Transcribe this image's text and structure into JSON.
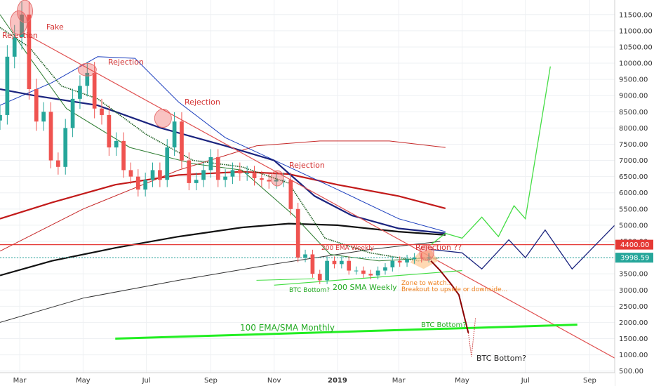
{
  "chart_data": {
    "type": "candlestick",
    "y_axis": {
      "ticks": [
        500,
        1000,
        1500,
        2000,
        2500,
        3000,
        3500,
        4000,
        4500,
        5000,
        5500,
        6000,
        6500,
        7000,
        7500,
        8000,
        8500,
        9000,
        9500,
        10000,
        10500,
        11000,
        11500
      ],
      "tick_labels": [
        "500.00",
        "1000.00",
        "1500.00",
        "2000.00",
        "2500.00",
        "3000.00",
        "3500.00",
        "4000.00",
        "4500.00",
        "5000.00",
        "5500.00",
        "6000.00",
        "6500.00",
        "7000.00",
        "7500.00",
        "8000.00",
        "8500.00",
        "9000.00",
        "9500.00",
        "10000.00",
        "10500.00",
        "11000.00",
        "11500.00"
      ],
      "ylim": [
        450,
        11950
      ],
      "scale": "linear"
    },
    "x_axis": {
      "tick_labels": [
        "Mar",
        "May",
        "Jul",
        "Sep",
        "Nov",
        "2019",
        "Mar",
        "May",
        "Jul",
        "Sep"
      ],
      "tick_dates": [
        "2018-03-01",
        "2018-05-01",
        "2018-07-01",
        "2018-09-01",
        "2018-11-01",
        "2019-01-01",
        "2019-03-01",
        "2019-05-01",
        "2019-07-01",
        "2019-09-01"
      ],
      "xlim": [
        "2018-02-10",
        "2019-09-25"
      ]
    },
    "price_labels": [
      {
        "value": 4400,
        "label": "4400.00",
        "color": "#e53935"
      },
      {
        "value": 3998.59,
        "label": "3998.59",
        "color": "#26a69a"
      }
    ],
    "candles_close": [
      [
        "2018-02-10",
        8400
      ],
      [
        "2018-02-17",
        10200
      ],
      [
        "2018-02-24",
        10800
      ],
      [
        "2018-03-03",
        11500
      ],
      [
        "2018-03-10",
        9200
      ],
      [
        "2018-03-17",
        8200
      ],
      [
        "2018-03-24",
        8500
      ],
      [
        "2018-03-31",
        7000
      ],
      [
        "2018-04-07",
        6800
      ],
      [
        "2018-04-14",
        8000
      ],
      [
        "2018-04-21",
        8900
      ],
      [
        "2018-04-28",
        9300
      ],
      [
        "2018-05-05",
        9700
      ],
      [
        "2018-05-12",
        8600
      ],
      [
        "2018-05-19",
        8400
      ],
      [
        "2018-05-26",
        7400
      ],
      [
        "2018-06-02",
        7600
      ],
      [
        "2018-06-09",
        6700
      ],
      [
        "2018-06-16",
        6500
      ],
      [
        "2018-06-23",
        6100
      ],
      [
        "2018-06-30",
        6400
      ],
      [
        "2018-07-07",
        6700
      ],
      [
        "2018-07-14",
        6400
      ],
      [
        "2018-07-21",
        7400
      ],
      [
        "2018-07-28",
        8200
      ],
      [
        "2018-08-04",
        7000
      ],
      [
        "2018-08-11",
        6300
      ],
      [
        "2018-08-18",
        6400
      ],
      [
        "2018-08-25",
        6700
      ],
      [
        "2018-09-01",
        7100
      ],
      [
        "2018-09-08",
        6400
      ],
      [
        "2018-09-15",
        6500
      ],
      [
        "2018-09-22",
        6700
      ],
      [
        "2018-09-29",
        6600
      ],
      [
        "2018-10-06",
        6600
      ],
      [
        "2018-10-13",
        6450
      ],
      [
        "2018-10-20",
        6400
      ],
      [
        "2018-10-27",
        6350
      ],
      [
        "2018-11-03",
        6400
      ],
      [
        "2018-11-10",
        6400
      ],
      [
        "2018-11-17",
        5500
      ],
      [
        "2018-11-24",
        4000
      ],
      [
        "2018-12-01",
        4100
      ],
      [
        "2018-12-08",
        3500
      ],
      [
        "2018-12-15",
        3300
      ],
      [
        "2018-12-22",
        3900
      ],
      [
        "2018-12-29",
        3800
      ],
      [
        "2019-01-05",
        3900
      ],
      [
        "2019-01-12",
        3600
      ],
      [
        "2019-01-19",
        3600
      ],
      [
        "2019-01-26",
        3500
      ],
      [
        "2019-02-02",
        3450
      ],
      [
        "2019-02-09",
        3600
      ],
      [
        "2019-02-16",
        3700
      ],
      [
        "2019-02-23",
        3900
      ],
      [
        "2019-03-02",
        3850
      ],
      [
        "2019-03-09",
        3950
      ],
      [
        "2019-03-16",
        4000
      ],
      [
        "2019-03-23",
        3990
      ],
      [
        "2019-03-30",
        3998.59
      ]
    ],
    "series": [
      {
        "name": "200 EMA Weekly",
        "color": "#c21a1a",
        "points": [
          [
            "2018-02-10",
            5200
          ],
          [
            "2018-04-01",
            5700
          ],
          [
            "2018-06-01",
            6250
          ],
          [
            "2018-08-01",
            6550
          ],
          [
            "2018-10-01",
            6650
          ],
          [
            "2018-11-15",
            6580
          ],
          [
            "2019-01-01",
            6250
          ],
          [
            "2019-03-01",
            5900
          ],
          [
            "2019-04-15",
            5520
          ]
        ]
      },
      {
        "name": "200 SMA Weekly",
        "color": "#111111",
        "points": [
          [
            "2018-02-10",
            3450
          ],
          [
            "2018-04-01",
            3900
          ],
          [
            "2018-06-01",
            4300
          ],
          [
            "2018-08-01",
            4650
          ],
          [
            "2018-10-01",
            4930
          ],
          [
            "2018-11-15",
            5050
          ],
          [
            "2019-01-01",
            5000
          ],
          [
            "2019-03-01",
            4800
          ],
          [
            "2019-04-15",
            4700
          ]
        ]
      }
    ],
    "projections": [
      {
        "label": "bullish",
        "color": "#44dd44",
        "points": [
          [
            "2019-04-01",
            4400
          ],
          [
            "2019-04-15",
            4750
          ],
          [
            "2019-05-01",
            4600
          ],
          [
            "2019-05-20",
            5250
          ],
          [
            "2019-06-05",
            4650
          ],
          [
            "2019-06-20",
            5600
          ],
          [
            "2019-07-01",
            5200
          ],
          [
            "2019-07-25",
            9900
          ]
        ]
      },
      {
        "label": "range",
        "color": "#1a237e",
        "points": [
          [
            "2019-04-01",
            4250
          ],
          [
            "2019-05-01",
            4150
          ],
          [
            "2019-05-20",
            3650
          ],
          [
            "2019-06-15",
            4550
          ],
          [
            "2019-07-01",
            4000
          ],
          [
            "2019-07-20",
            4850
          ],
          [
            "2019-08-15",
            3650
          ],
          [
            "2019-09-25",
            5000
          ]
        ]
      },
      {
        "label": "bearish",
        "color": "#8b0000",
        "points": [
          [
            "2019-04-01",
            3900
          ],
          [
            "2019-04-10",
            3600
          ],
          [
            "2019-04-20",
            3200
          ],
          [
            "2019-04-28",
            2850
          ],
          [
            "2019-05-07",
            1680
          ]
        ]
      }
    ],
    "annotations": [
      {
        "text": "Rejection",
        "color": "#d32f2f"
      },
      {
        "text": "Fake",
        "color": "#d32f2f"
      },
      {
        "text": "Rejection",
        "color": "#d32f2f"
      },
      {
        "text": "Rejection",
        "color": "#d32f2f"
      },
      {
        "text": "Rejection",
        "color": "#d32f2f"
      },
      {
        "text": "Rejection ??",
        "color": "#d32f2f"
      },
      {
        "text": "200 EMA Weekly",
        "color": "#d32f2f"
      },
      {
        "text": "200 SMA Weekly",
        "color": "#22aa22"
      },
      {
        "text": "BTC Bottom?",
        "color": "#22aa22"
      },
      {
        "text": "Zone to watch..",
        "color": "#ef7f1a"
      },
      {
        "text": "Breakout to upside or downside...",
        "color": "#ef7f1a"
      },
      {
        "text": "100 EMA/SMA Monthly",
        "color": "#22aa22"
      },
      {
        "text": "BTC Bottom?",
        "color": "#22aa22"
      },
      {
        "text": "BTC Bottom?",
        "color": "#222222"
      }
    ],
    "grid": true,
    "colors": {
      "up": "#26a69a",
      "down": "#ef5350",
      "support": "#22dd22",
      "accent_red": "#e53935"
    }
  }
}
